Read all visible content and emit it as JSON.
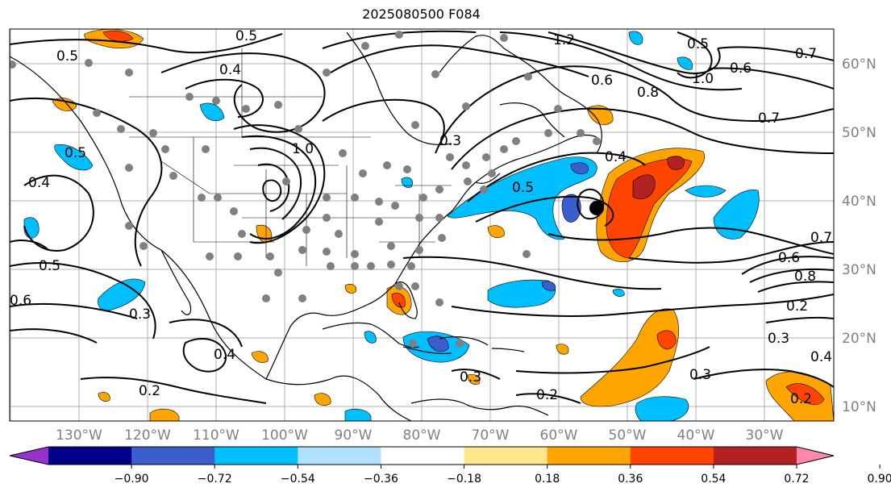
{
  "title": "2025080500 F084",
  "lon_labels": [
    "130°W",
    "120°W",
    "110°W",
    "100°W",
    "90°W",
    "80°W",
    "70°W",
    "60°W",
    "50°W",
    "40°W",
    "30°W"
  ],
  "lat_labels": [
    "60°N",
    "50°N",
    "40°N",
    "30°N",
    "20°N",
    "10°N"
  ],
  "contour_labels": [
    "0.5",
    "1.2",
    "0.5",
    "0.6",
    "0.7",
    "0.6",
    "1.0",
    "0.4",
    "0.8",
    "0.7",
    "0.4",
    "0.3",
    "0.5",
    "0.5",
    "0.6",
    "0.7",
    "0.8",
    "0.2",
    "0.3",
    "0.3",
    "0.4",
    "0.2",
    "0.2",
    "0.3",
    "0.3",
    "0.2",
    "0.4",
    "0.5",
    "0.6",
    "1.0",
    "0.4",
    "0.5"
  ],
  "colorbar": {
    "ticks": [
      "−0.90",
      "−0.72",
      "−0.54",
      "−0.36",
      "−0.18",
      "0.18",
      "0.36",
      "0.54",
      "0.72",
      "0.90"
    ],
    "colors": [
      "#9932cc",
      "#00008b",
      "#3a5fcd",
      "#00bfff",
      "#b0e2ff",
      "#ffffff",
      "#ffe78a",
      "#ffa500",
      "#ff4500",
      "#b22222",
      "#ff88aa"
    ]
  }
}
